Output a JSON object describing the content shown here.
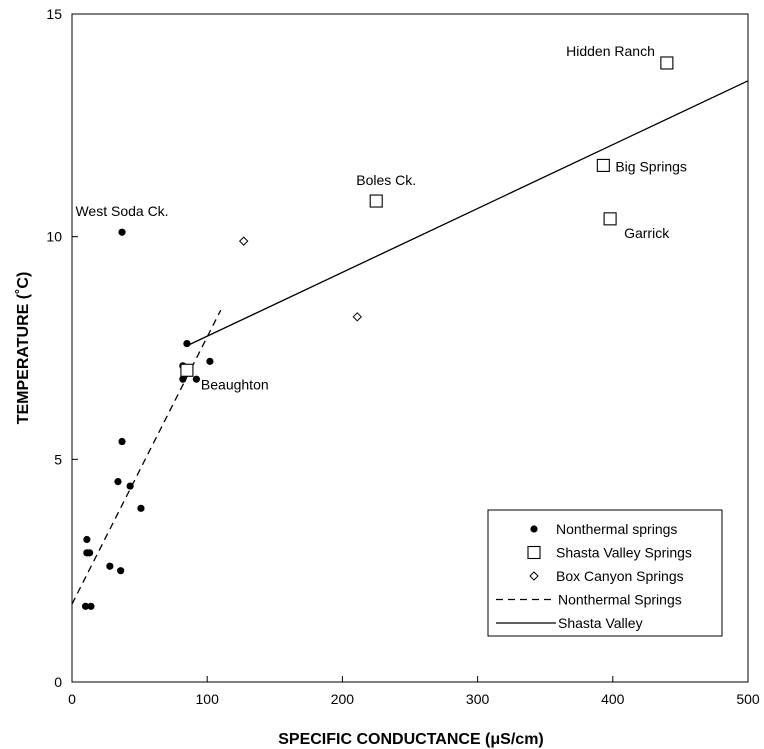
{
  "chart_data": {
    "type": "scatter",
    "xlabel": "SPECIFIC CONDUCTANCE (μS/cm)",
    "ylabel": "TEMPERATURE (˚C)",
    "xlim": [
      0,
      500
    ],
    "ylim": [
      0,
      15
    ],
    "xticks": [
      "0",
      "100",
      "200",
      "300",
      "400",
      "500"
    ],
    "yticks": [
      "0",
      "5",
      "10",
      "15"
    ],
    "grid": false,
    "legend_position": "bottom-right",
    "series": [
      {
        "name": "Nonthermal springs",
        "kind": "scatter",
        "marker": "filled-circle",
        "points": [
          [
            37,
            10.1
          ],
          [
            85,
            7.6
          ],
          [
            82,
            7.1
          ],
          [
            102,
            7.2
          ],
          [
            82,
            6.8
          ],
          [
            92,
            6.8
          ],
          [
            37,
            5.4
          ],
          [
            34,
            4.5
          ],
          [
            43,
            4.4
          ],
          [
            51,
            3.9
          ],
          [
            11,
            3.2
          ],
          [
            11,
            2.9
          ],
          [
            13,
            2.9
          ],
          [
            28,
            2.6
          ],
          [
            36,
            2.5
          ],
          [
            10,
            1.7
          ],
          [
            14,
            1.7
          ]
        ]
      },
      {
        "name": "Shasta Valley Springs",
        "kind": "scatter",
        "marker": "open-square",
        "points": [
          [
            85,
            7.0
          ],
          [
            225,
            10.8
          ],
          [
            393,
            11.6
          ],
          [
            398,
            10.4
          ],
          [
            440,
            13.9
          ]
        ]
      },
      {
        "name": "Box Canyon Springs",
        "kind": "scatter",
        "marker": "open-diamond",
        "points": [
          [
            127,
            9.9
          ],
          [
            211,
            8.2
          ]
        ]
      },
      {
        "name": "Nonthermal Springs",
        "kind": "line",
        "style": "dashed",
        "points": [
          [
            0,
            1.75
          ],
          [
            110,
            8.35
          ]
        ]
      },
      {
        "name": "Shasta Valley",
        "kind": "line",
        "style": "solid",
        "points": [
          [
            85,
            7.55
          ],
          [
            500,
            13.5
          ]
        ]
      }
    ],
    "annotations": [
      {
        "text": "Hidden Ranch",
        "x": 440,
        "y": 13.9,
        "anchor": "end-left"
      },
      {
        "text": "Big Springs",
        "x": 393,
        "y": 11.6,
        "anchor": "right"
      },
      {
        "text": "Garrick",
        "x": 398,
        "y": 10.4,
        "anchor": "right-below"
      },
      {
        "text": "Boles Ck.",
        "x": 225,
        "y": 10.8,
        "anchor": "above"
      },
      {
        "text": "West Soda Ck.",
        "x": 37,
        "y": 10.1,
        "anchor": "above"
      },
      {
        "text": "Beaughton",
        "x": 85,
        "y": 7.0,
        "anchor": "right-below"
      }
    ]
  }
}
